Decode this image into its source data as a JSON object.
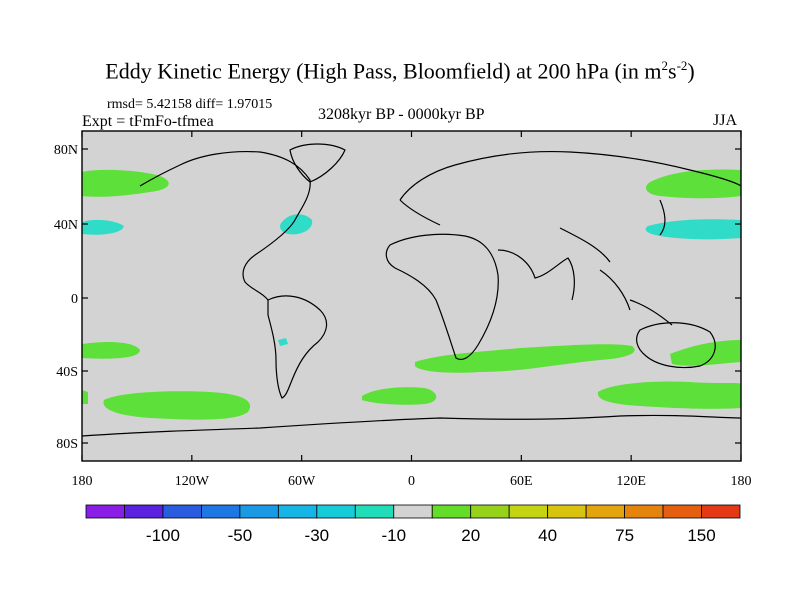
{
  "title": "Eddy Kinetic Energy (High Pass, Bloomfield) at 200 hPa (in m",
  "title_unit_sup1": "2",
  "title_unit_mid": "s",
  "title_unit_sup2": "-2",
  "title_close": ")",
  "stats": "rmsd= 5.42158 diff= 1.97015",
  "experiment": "Expt = tFmFo-tfmea",
  "period": "3208kyr BP - 0000kyr BP",
  "season": "JJA",
  "map": {
    "land_color": "#d3d3d3",
    "y_ticks": [
      "80N",
      "40N",
      "0",
      "40S",
      "80S"
    ],
    "x_ticks": [
      "180",
      "120W",
      "60W",
      "0",
      "60E",
      "120E",
      "180"
    ]
  },
  "colorbar": {
    "colors": [
      "#8a1ee6",
      "#5a22e0",
      "#2a5ce0",
      "#1e78e4",
      "#1a9ae4",
      "#17b4e6",
      "#17ccd8",
      "#20dcb8",
      "#d3d3d3",
      "#64dc28",
      "#96d21a",
      "#c4d412",
      "#d8c40e",
      "#e4a40e",
      "#e4840c",
      "#e46010",
      "#e23a14"
    ],
    "labels": [
      "-100",
      "-50",
      "-30",
      "-10",
      "20",
      "40",
      "75",
      "150"
    ]
  },
  "anomaly_colors": {
    "positive": "#5ee03a",
    "negative": "#30dcc8"
  }
}
